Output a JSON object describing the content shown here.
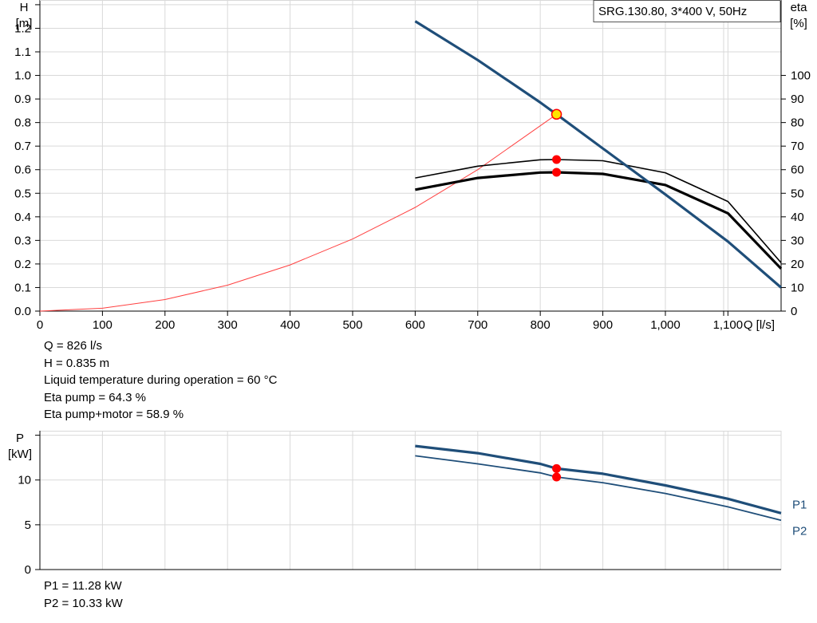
{
  "chart_data": [
    {
      "type": "line",
      "title": "SRG.130.80, 3*400 V, 50Hz",
      "xlabel": "Q [l/s]",
      "ylabel": "H",
      "yunit": "[m]",
      "y2label": "eta",
      "y2unit": "[%]",
      "xlim": [
        0,
        1185
      ],
      "ylim": [
        0,
        1.32
      ],
      "y2lim": [
        0,
        132
      ],
      "grid": true,
      "x_ticks": [
        "0",
        "100",
        "200",
        "300",
        "400",
        "500",
        "600",
        "700",
        "800",
        "900",
        "1,000",
        "1,100"
      ],
      "y_ticks": [
        "0.0",
        "0.1",
        "0.2",
        "0.3",
        "0.4",
        "0.5",
        "0.6",
        "0.7",
        "0.8",
        "0.9",
        "1.0",
        "1.1",
        "1.2"
      ],
      "y2_ticks": [
        "0",
        "10",
        "20",
        "30",
        "40",
        "50",
        "60",
        "70",
        "80",
        "90",
        "100"
      ],
      "colors": {
        "head": "#1f4e79",
        "system": "#ff4040",
        "eta": "#000000",
        "marker": "#ff0000",
        "duty": "#ffe600"
      },
      "series": [
        {
          "key": "head",
          "axis": "y",
          "x": [
            600,
            700,
            800,
            826,
            900,
            1000,
            1100,
            1185
          ],
          "y": [
            1.23,
            1.065,
            0.885,
            0.835,
            0.69,
            0.495,
            0.295,
            0.1
          ]
        },
        {
          "key": "system",
          "axis": "y",
          "x": [
            0,
            100,
            200,
            300,
            400,
            500,
            600,
            700,
            826
          ],
          "y": [
            0.0,
            0.0122,
            0.049,
            0.11,
            0.196,
            0.306,
            0.44,
            0.6,
            0.835
          ]
        },
        {
          "key": "eta_pump",
          "axis": "y2",
          "x": [
            600,
            700,
            800,
            826,
            900,
            1000,
            1100,
            1185
          ],
          "y": [
            56.5,
            61.5,
            64.2,
            64.3,
            63.8,
            58.7,
            46.5,
            20.5
          ]
        },
        {
          "key": "eta_total",
          "axis": "y2",
          "x": [
            600,
            700,
            800,
            826,
            900,
            1000,
            1100,
            1185
          ],
          "y": [
            51.5,
            56.5,
            58.8,
            58.9,
            58.2,
            53.5,
            41.5,
            18.0
          ]
        }
      ],
      "markers": [
        {
          "key": "duty",
          "axis": "y",
          "x": 826,
          "y": 0.835
        },
        {
          "key": "eta_pump",
          "axis": "y2",
          "x": 826,
          "y": 64.3
        },
        {
          "key": "eta_total",
          "axis": "y2",
          "x": 826,
          "y": 58.9
        }
      ]
    },
    {
      "type": "line",
      "ylabel": "P",
      "yunit": "[kW]",
      "xlim": [
        0,
        1185
      ],
      "ylim": [
        0,
        15.5
      ],
      "grid": true,
      "y_ticks": [
        "0",
        "5",
        "10"
      ],
      "series": [
        {
          "name": "P1",
          "x": [
            600,
            700,
            800,
            826,
            900,
            1000,
            1100,
            1185
          ],
          "y": [
            13.8,
            13.0,
            11.8,
            11.28,
            10.7,
            9.4,
            7.9,
            6.3
          ]
        },
        {
          "name": "P2",
          "x": [
            600,
            700,
            800,
            826,
            900,
            1000,
            1100,
            1185
          ],
          "y": [
            12.7,
            11.8,
            10.8,
            10.33,
            9.7,
            8.5,
            7.0,
            5.5
          ]
        }
      ],
      "markers": [
        {
          "series": "P1",
          "x": 826,
          "y": 11.28
        },
        {
          "series": "P2",
          "x": 826,
          "y": 10.33
        }
      ]
    }
  ],
  "readout_top": [
    "Q = 826 l/s",
    "H = 0.835 m",
    "Liquid temperature during operation = 60 °C",
    "Eta pump = 64.3 %",
    "Eta pump+motor = 58.9 %"
  ],
  "readout_bottom": [
    "P1 = 11.28 kW",
    "P2 = 10.33 kW"
  ]
}
